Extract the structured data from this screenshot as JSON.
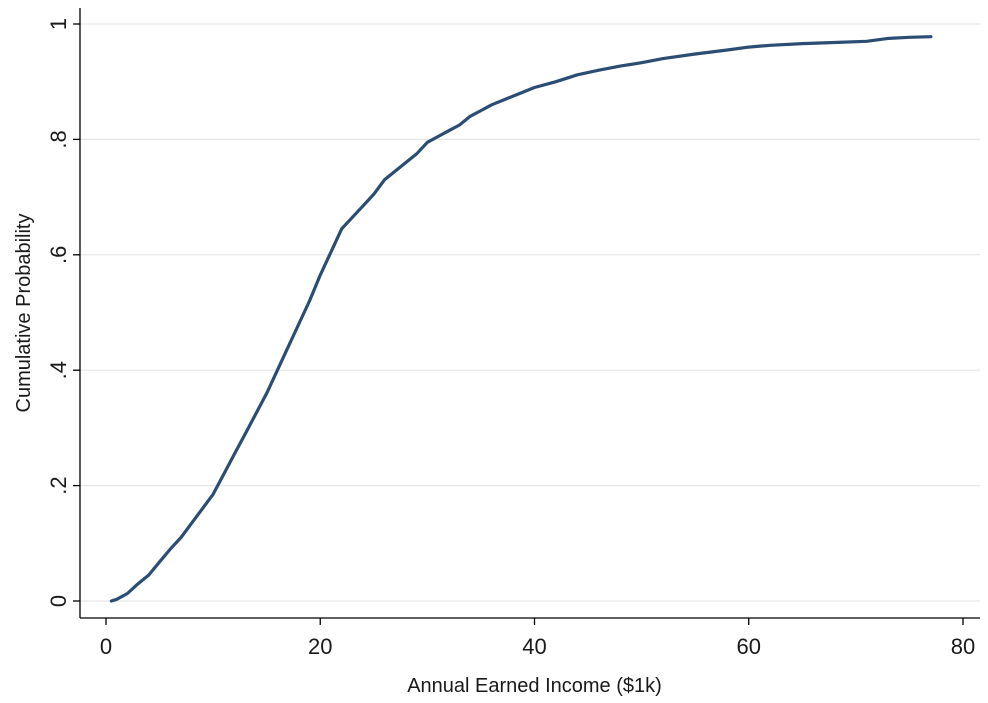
{
  "chart_data": {
    "type": "line",
    "title": "",
    "xlabel": "Annual Earned Income ($1k)",
    "ylabel": "Cumulative Probability",
    "xlim": [
      0,
      80
    ],
    "ylim": [
      0,
      1
    ],
    "xticks": [
      0,
      20,
      40,
      60,
      80
    ],
    "xtick_labels": [
      "0",
      "20",
      "40",
      "60",
      "80"
    ],
    "yticks": [
      0,
      0.2,
      0.4,
      0.6,
      0.8,
      1
    ],
    "ytick_labels": [
      "0",
      ".2",
      ".4",
      ".6",
      ".8",
      "1"
    ],
    "grid": true,
    "legend": "none",
    "colors": {
      "line": "#2b4d73",
      "grid": "#e6e6e6",
      "axis": "#000000"
    },
    "series": [
      {
        "x": [
          0.5,
          1,
          2,
          3,
          4,
          5,
          6,
          7,
          8,
          9,
          10,
          11,
          12,
          13,
          14,
          15,
          16,
          17,
          18,
          19,
          20,
          21,
          22,
          23,
          24,
          25,
          26,
          27,
          28,
          29,
          30,
          31,
          32,
          33,
          34,
          35,
          36,
          38,
          40,
          42,
          44,
          46,
          48,
          50,
          52,
          55,
          58,
          60,
          62,
          65,
          68,
          71,
          73,
          75,
          77
        ],
        "y": [
          0.0,
          0.003,
          0.013,
          0.03,
          0.045,
          0.068,
          0.09,
          0.11,
          0.135,
          0.16,
          0.185,
          0.22,
          0.255,
          0.29,
          0.325,
          0.36,
          0.4,
          0.44,
          0.48,
          0.52,
          0.565,
          0.605,
          0.645,
          0.665,
          0.685,
          0.705,
          0.73,
          0.745,
          0.76,
          0.775,
          0.795,
          0.805,
          0.815,
          0.825,
          0.84,
          0.85,
          0.86,
          0.875,
          0.89,
          0.9,
          0.912,
          0.92,
          0.927,
          0.933,
          0.94,
          0.948,
          0.955,
          0.96,
          0.963,
          0.966,
          0.968,
          0.97,
          0.975,
          0.977,
          0.978
        ]
      }
    ]
  }
}
